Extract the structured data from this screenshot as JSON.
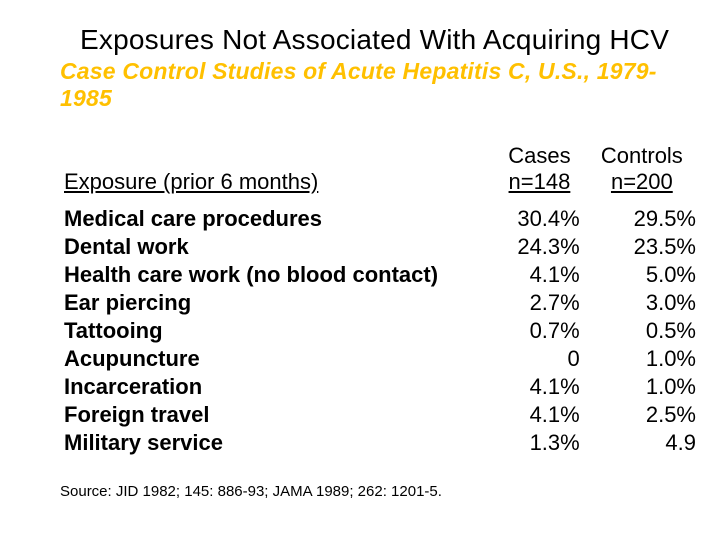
{
  "title": "Exposures Not Associated With Acquiring HCV",
  "subtitle": "Case Control Studies of Acute Hepatitis C, U.S., 1979-1985",
  "table": {
    "header": {
      "exposure": "Exposure (prior 6 months)",
      "cases_label": "Cases",
      "cases_n": "n=148",
      "controls_label": "Controls",
      "controls_n": "n=200"
    },
    "rows": [
      {
        "label": "Medical care procedures",
        "cases": "30.4%",
        "controls": "29.5%"
      },
      {
        "label": "Dental work",
        "cases": "24.3%",
        "controls": "23.5%"
      },
      {
        "label": "Health care work (no blood contact)",
        "cases": "4.1%",
        "controls": "5.0%"
      },
      {
        "label": "Ear piercing",
        "cases": "2.7%",
        "controls": "3.0%"
      },
      {
        "label": "Tattooing",
        "cases": "0.7%",
        "controls": "0.5%"
      },
      {
        "label": "Acupuncture",
        "cases": "0",
        "controls": "1.0%"
      },
      {
        "label": "Incarceration",
        "cases": "4.1%",
        "controls": "1.0%"
      },
      {
        "label": "Foreign travel",
        "cases": "4.1%",
        "controls": "2.5%"
      },
      {
        "label": "Military service",
        "cases": "1.3%",
        "controls": "4.9"
      }
    ]
  },
  "source": "Source: JID 1982; 145: 886-93; JAMA 1989; 262: 1201-5.",
  "colors": {
    "subtitle": "#ffc000",
    "text": "#000000",
    "background": "#ffffff"
  }
}
